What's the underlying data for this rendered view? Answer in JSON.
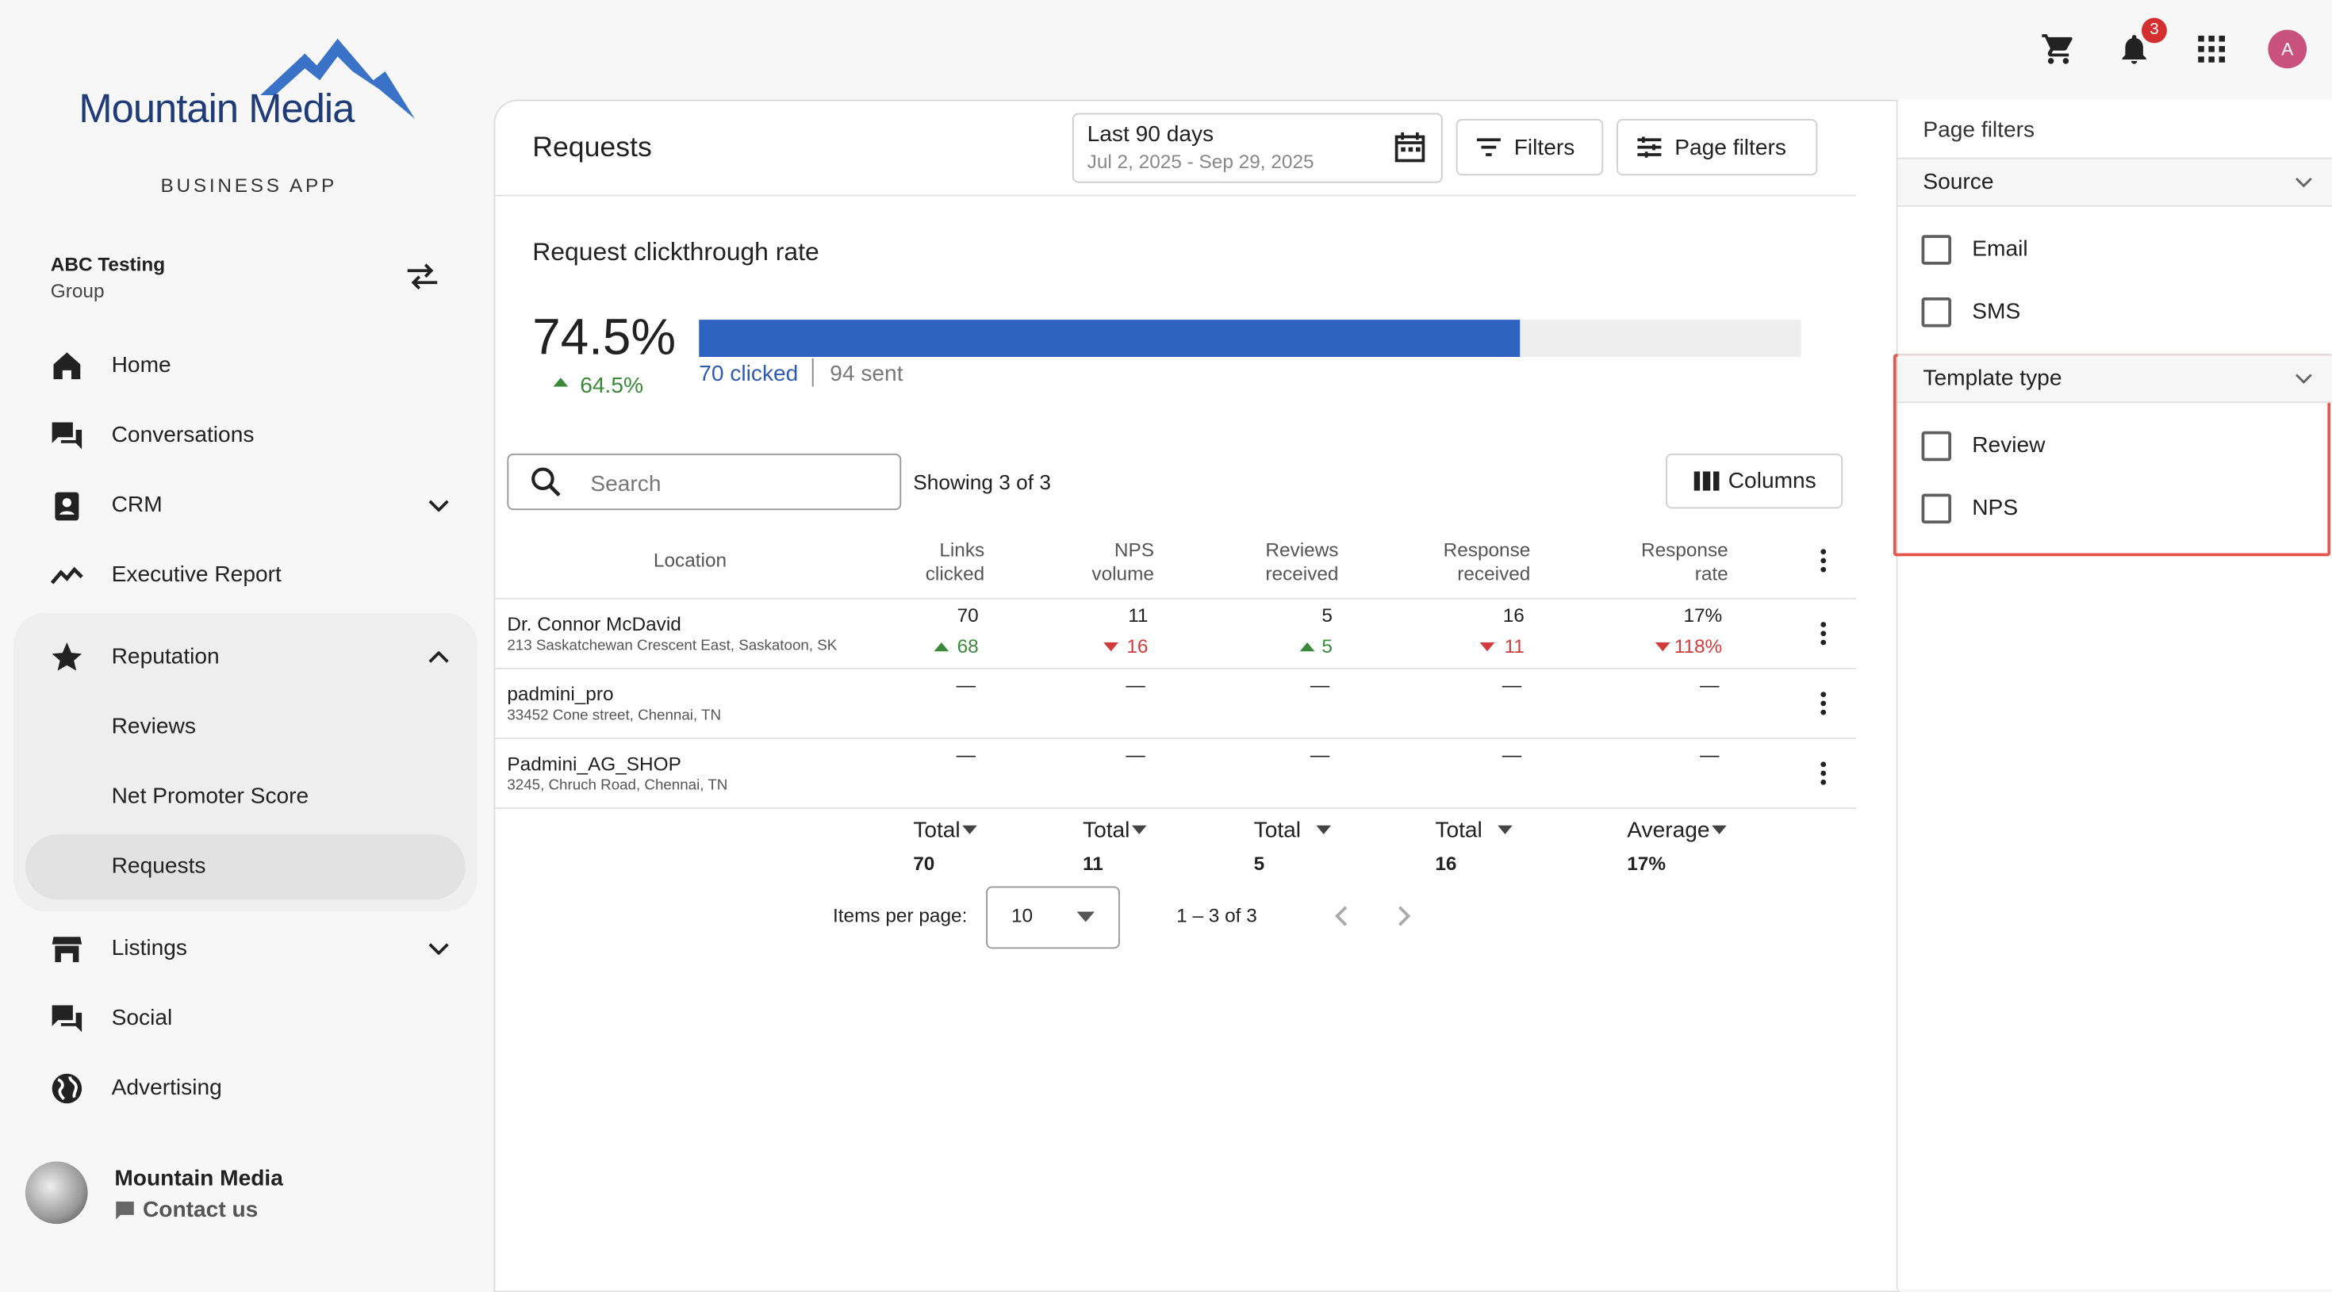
{
  "header": {
    "notification_count": "3",
    "avatar": "A"
  },
  "sidebar": {
    "logo": "Mountain Media",
    "app_label": "BUSINESS APP",
    "account": {
      "name": "ABC Testing",
      "type": "Group"
    },
    "nav": [
      "Home",
      "Conversations",
      "CRM",
      "Executive Report",
      "Reputation",
      "Reviews",
      "Net Promoter Score",
      "Requests",
      "Listings",
      "Social",
      "Advertising"
    ],
    "footer": {
      "name": "Mountain Media",
      "contact": "Contact us"
    }
  },
  "main": {
    "title": "Requests",
    "date_range": {
      "label": "Last 90 days",
      "dates": "Jul 2, 2025 - Sep 29, 2025"
    },
    "buttons": [
      "Filters",
      "Page filters"
    ],
    "metric": {
      "title": "Request clickthrough rate",
      "value": "74.5%",
      "change": "64.5%",
      "clicked": "70 clicked",
      "sent": "94 sent"
    },
    "search_placeholder": "Search",
    "showing": "Showing 3 of 3",
    "columns_button": "Columns",
    "table": {
      "columns": [
        "Location",
        "Links clicked",
        "NPS volume",
        "Reviews received",
        "Response received",
        "Response rate"
      ],
      "rows": [
        {
          "name": "Dr. Connor McDavid",
          "address": "213 Saskatchewan Crescent East, Saskatoon, SK",
          "cells": [
            {
              "value": "70",
              "change": "68",
              "trend": "up"
            },
            {
              "value": "11",
              "change": "16",
              "trend": "down"
            },
            {
              "value": "5",
              "change": "5",
              "trend": "up"
            },
            {
              "value": "16",
              "change": "11",
              "trend": "down"
            },
            {
              "value": "17%",
              "change": "118%",
              "trend": "down"
            }
          ]
        },
        {
          "name": "padmini_pro",
          "address": "33452 Cone street, Chennai, TN",
          "cells": [
            {
              "value": "—"
            },
            {
              "value": "—"
            },
            {
              "value": "—"
            },
            {
              "value": "—"
            },
            {
              "value": "—"
            }
          ]
        },
        {
          "name": "Padmini_AG_SHOP",
          "address": "3245, Chruch Road, Chennai, TN",
          "cells": [
            {
              "value": "—"
            },
            {
              "value": "—"
            },
            {
              "value": "—"
            },
            {
              "value": "—"
            },
            {
              "value": "—"
            }
          ]
        }
      ],
      "totals": [
        {
          "label": "Total",
          "value": "70"
        },
        {
          "label": "Total",
          "value": "11"
        },
        {
          "label": "Total",
          "value": "5"
        },
        {
          "label": "Total",
          "value": "16"
        },
        {
          "label": "Average",
          "value": "17%"
        }
      ]
    },
    "pagination": {
      "label": "Items per page:",
      "page_size": "10",
      "range": "1 – 3 of 3"
    }
  },
  "filters_panel": {
    "title": "Page filters",
    "sections": [
      {
        "title": "Source",
        "options": [
          "Email",
          "SMS"
        ]
      },
      {
        "title": "Template type",
        "options": [
          "Review",
          "NPS"
        ]
      }
    ]
  }
}
